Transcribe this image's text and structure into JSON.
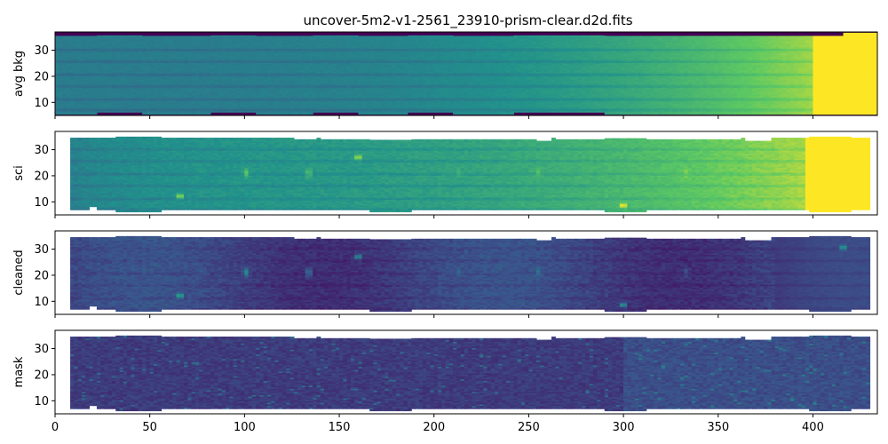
{
  "title": "uncover-5m2-v1-2561_23910-prism-clear.d2d.fits",
  "colormap": "viridis",
  "colors": {
    "cmap": [
      "#440154",
      "#3b528b",
      "#21918c",
      "#5ec962",
      "#fde725"
    ],
    "mask_fill": "#ffffff",
    "axes": "#000000"
  },
  "chart_data": {
    "type": "heatmap",
    "shared_x": true,
    "xlim": [
      0,
      434
    ],
    "ylim": [
      5,
      37
    ],
    "x_ticks": [
      0,
      50,
      100,
      150,
      200,
      250,
      300,
      350,
      400
    ],
    "y_ticks": [
      10,
      20,
      30
    ],
    "trace_rows": [
      7,
      11,
      16,
      20.5,
      25.5,
      30
    ],
    "emission_lines": [
      {
        "x": 101,
        "y": 21,
        "strength": 0.7
      },
      {
        "x": 134,
        "y": 21,
        "strength": 0.6
      },
      {
        "x": 213,
        "y": 21,
        "strength": 0.25
      },
      {
        "x": 255,
        "y": 21,
        "strength": 0.3
      },
      {
        "x": 333,
        "y": 21,
        "strength": 0.25
      },
      {
        "x": 78,
        "y": 21,
        "strength": 0.15
      }
    ],
    "hot_pixels": [
      {
        "x": 66,
        "y": 12
      },
      {
        "x": 300,
        "y": 8.5
      },
      {
        "x": 160,
        "y": 27
      },
      {
        "x": 416,
        "y": 30.5
      }
    ],
    "panels": [
      {
        "ylabel": "avg bkg",
        "kind": "bkg"
      },
      {
        "ylabel": "sci",
        "kind": "sci"
      },
      {
        "ylabel": "cleaned",
        "kind": "cleaned"
      },
      {
        "ylabel": "mask",
        "kind": "mask"
      }
    ]
  }
}
